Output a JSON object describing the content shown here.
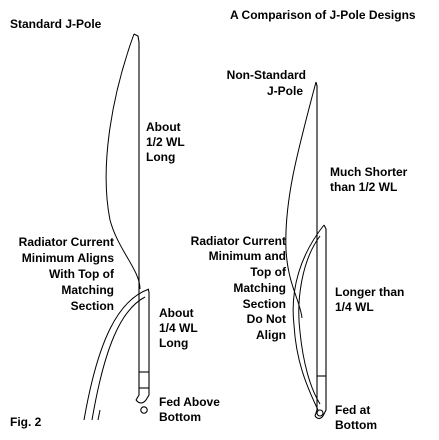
{
  "title": "A Comparison of J-Pole Designs",
  "fig_label": "Fig. 2",
  "standard": {
    "name": "Standard J-Pole",
    "radiator_note": [
      "About",
      "1/2 WL",
      "Long"
    ],
    "current_note": [
      "Radiator Current",
      "Minimum Aligns",
      "With Top of",
      "Matching",
      "Section"
    ],
    "matching_note": [
      "About",
      "1/4 WL",
      "Long"
    ],
    "feed_note": [
      "Fed Above",
      "Bottom"
    ]
  },
  "nonstandard": {
    "name": [
      "Non-Standard",
      "J-Pole"
    ],
    "radiator_note": [
      "Much Shorter",
      "than 1/2 WL"
    ],
    "current_note": [
      "Radiator Current",
      "Minimum and",
      "Top of",
      "Matching",
      "Section",
      "Do Not",
      "Align"
    ],
    "matching_note": [
      "Longer than",
      "1/4 WL"
    ],
    "feed_note": [
      "Fed at",
      "Bottom"
    ]
  }
}
